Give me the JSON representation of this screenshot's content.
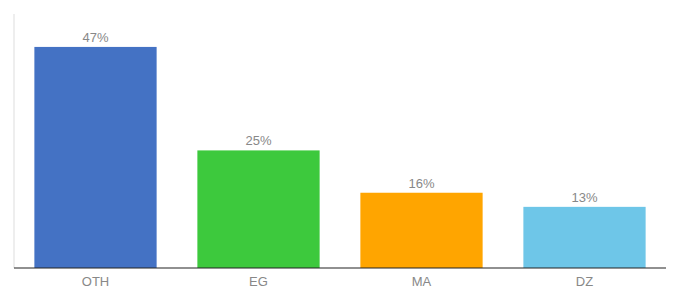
{
  "chart_data": {
    "type": "bar",
    "categories": [
      "OTH",
      "EG",
      "MA",
      "DZ"
    ],
    "values": [
      47,
      25,
      16,
      13
    ],
    "value_labels": [
      "47%",
      "25%",
      "16%",
      "13%"
    ],
    "colors": [
      "#4472C4",
      "#3DC93D",
      "#FFA500",
      "#6EC6E8"
    ],
    "ylim": [
      0,
      54
    ],
    "grid": false,
    "data_labels": true,
    "tick_labels": "x"
  }
}
